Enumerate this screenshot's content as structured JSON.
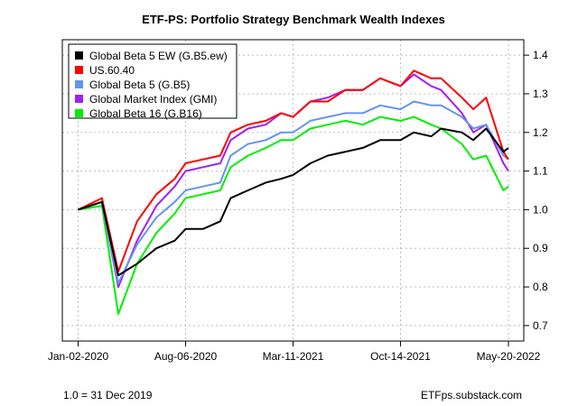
{
  "chart_data": {
    "type": "line",
    "title": "ETF-PS: Portfolio Strategy Benchmark Wealth Indexes",
    "xlabel": "",
    "ylabel": "",
    "x_tick_labels": [
      "Jan-02-2020",
      "Aug-06-2020",
      "Mar-11-2021",
      "Oct-14-2021",
      "May-20-2022"
    ],
    "x_ticks": [
      "2020-01-02",
      "2020-08-06",
      "2021-03-11",
      "2021-10-14",
      "2022-05-20"
    ],
    "xlim": [
      "2019-12-01",
      "2022-06-20"
    ],
    "ylim": [
      0.66,
      1.44
    ],
    "y_ticks": [
      0.7,
      0.8,
      0.9,
      1.0,
      1.1,
      1.2,
      1.3,
      1.4
    ],
    "y_axis_side": "right",
    "grid": true,
    "legend_position": "top-left",
    "x": [
      "2020-01-02",
      "2020-02-19",
      "2020-03-23",
      "2020-04-30",
      "2020-06-08",
      "2020-07-15",
      "2020-08-06",
      "2020-09-10",
      "2020-10-15",
      "2020-11-05",
      "2020-12-10",
      "2021-01-15",
      "2021-02-15",
      "2021-03-11",
      "2021-04-15",
      "2021-05-20",
      "2021-06-25",
      "2021-07-30",
      "2021-09-03",
      "2021-10-14",
      "2021-11-10",
      "2021-12-15",
      "2022-01-04",
      "2022-02-15",
      "2022-03-10",
      "2022-04-05",
      "2022-05-10",
      "2022-05-20"
    ],
    "series": [
      {
        "name": "Global Beta 5 EW (G.B5.ew)",
        "color": "#000000",
        "values": [
          1.0,
          1.02,
          0.83,
          0.86,
          0.9,
          0.92,
          0.95,
          0.95,
          0.97,
          1.03,
          1.05,
          1.07,
          1.08,
          1.09,
          1.12,
          1.14,
          1.15,
          1.16,
          1.18,
          1.18,
          1.2,
          1.19,
          1.21,
          1.2,
          1.18,
          1.21,
          1.15,
          1.16
        ]
      },
      {
        "name": "US.60.40",
        "color": "#ff0000",
        "values": [
          1.0,
          1.03,
          0.84,
          0.97,
          1.04,
          1.08,
          1.12,
          1.13,
          1.14,
          1.2,
          1.22,
          1.23,
          1.25,
          1.24,
          1.28,
          1.28,
          1.31,
          1.31,
          1.34,
          1.32,
          1.36,
          1.34,
          1.34,
          1.29,
          1.26,
          1.29,
          1.15,
          1.13
        ]
      },
      {
        "name": "Global Beta 5 (G.B5)",
        "color": "#6495ed",
        "values": [
          1.0,
          1.02,
          0.81,
          0.91,
          0.98,
          1.02,
          1.05,
          1.06,
          1.07,
          1.14,
          1.17,
          1.18,
          1.2,
          1.2,
          1.23,
          1.24,
          1.25,
          1.25,
          1.27,
          1.26,
          1.28,
          1.27,
          1.27,
          1.24,
          1.21,
          1.22,
          1.14,
          1.13
        ]
      },
      {
        "name": "Global Market Index (GMI)",
        "color": "#a020f0",
        "values": [
          1.0,
          1.02,
          0.8,
          0.92,
          1.01,
          1.06,
          1.1,
          1.11,
          1.12,
          1.18,
          1.21,
          1.22,
          1.25,
          1.24,
          1.28,
          1.29,
          1.31,
          1.31,
          1.34,
          1.32,
          1.35,
          1.32,
          1.31,
          1.25,
          1.2,
          1.22,
          1.12,
          1.1
        ]
      },
      {
        "name": "Global Beta 16 (G.B16)",
        "color": "#00ee00",
        "values": [
          1.0,
          1.01,
          0.73,
          0.86,
          0.94,
          0.99,
          1.03,
          1.04,
          1.05,
          1.11,
          1.14,
          1.16,
          1.18,
          1.18,
          1.21,
          1.22,
          1.23,
          1.22,
          1.24,
          1.23,
          1.24,
          1.22,
          1.21,
          1.17,
          1.13,
          1.14,
          1.05,
          1.06
        ]
      }
    ],
    "annotations": {
      "bottom_left": "1.0 = 31 Dec 2019",
      "bottom_right": "ETFps.substack.com"
    }
  }
}
